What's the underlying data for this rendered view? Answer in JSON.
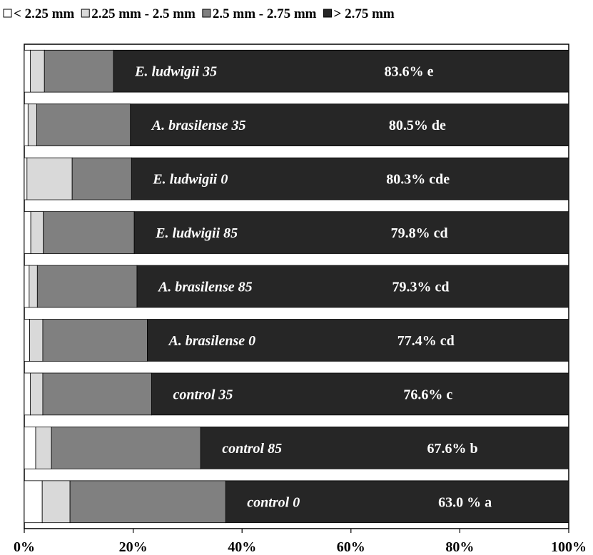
{
  "chart_data": {
    "type": "bar",
    "orientation": "horizontal",
    "stacked": true,
    "percent_scale": true,
    "categories": [
      "E. ludwigii 35",
      "A. brasilense 35",
      "E. ludwigii 0",
      "E. ludwigii 85",
      "A. brasilense 85",
      "A. brasilense 0",
      "control 35",
      "control 85",
      "control 0"
    ],
    "series": [
      {
        "name": "< 2.25 mm",
        "color": "#ffffff",
        "values": [
          1.1,
          0.7,
          0.5,
          1.2,
          0.9,
          1.0,
          1.1,
          2.1,
          3.3
        ]
      },
      {
        "name": "2.25 mm - 2.5 mm",
        "color": "#d9d9d9",
        "values": [
          2.6,
          1.6,
          8.3,
          2.3,
          1.5,
          2.4,
          2.3,
          2.9,
          5.1
        ]
      },
      {
        "name": "2.5 mm - 2.75 mm",
        "color": "#808080",
        "values": [
          12.7,
          17.2,
          10.9,
          16.7,
          18.3,
          19.2,
          20.0,
          27.4,
          28.6
        ]
      },
      {
        "name": "> 2.75 mm",
        "color": "#262626",
        "values": [
          83.6,
          80.5,
          80.3,
          79.8,
          79.3,
          77.4,
          76.6,
          67.6,
          63.0
        ]
      }
    ],
    "bar_labels": [
      "83.6% e",
      "80.5% de",
      "80.3% cde",
      "79.8% cd",
      "79.3% cd",
      "77.4% cd",
      "76.6% c",
      "67.6% b",
      "63.0 % a"
    ],
    "xlim": [
      0,
      100
    ],
    "x_ticks": [
      "0%",
      "20%",
      "40%",
      "60%",
      "80%",
      "100%"
    ],
    "legend_position": "top",
    "grid": false
  }
}
